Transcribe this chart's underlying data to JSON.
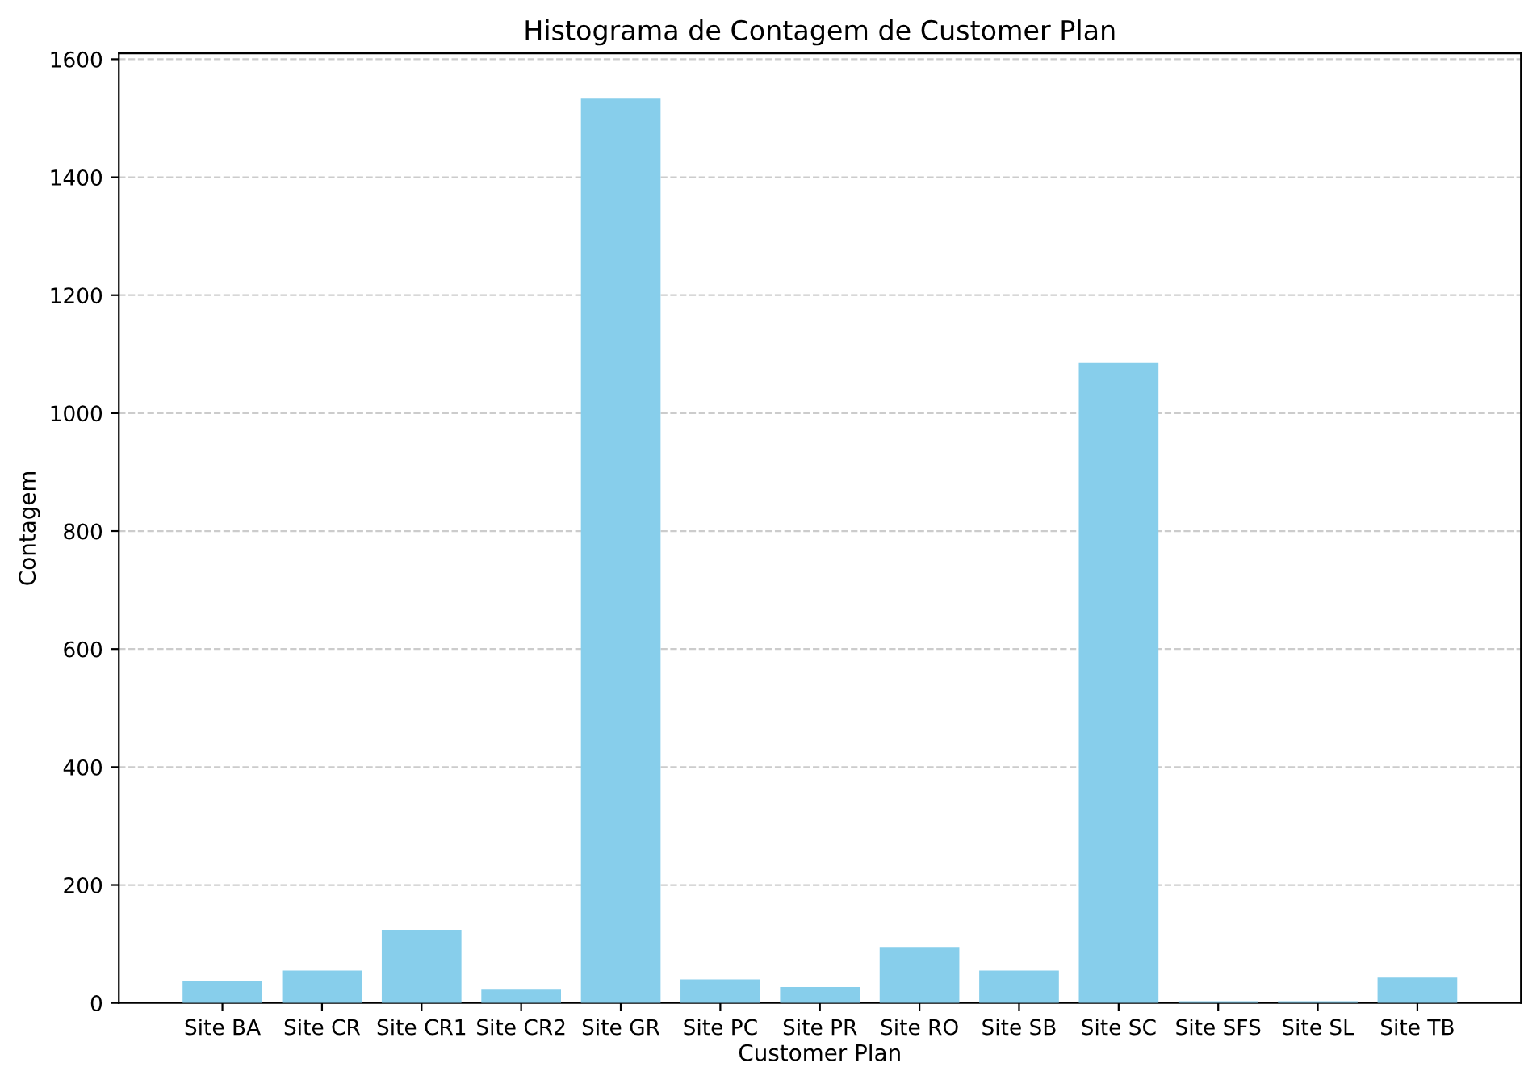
{
  "chart_data": {
    "type": "bar",
    "title": "Histograma de Contagem de Customer Plan",
    "xlabel": "Customer Plan",
    "ylabel": "Contagem",
    "categories": [
      "Site BA",
      "Site CR",
      "Site CR1",
      "Site CR2",
      "Site GR",
      "Site PC",
      "Site PR",
      "Site RO",
      "Site SB",
      "Site SC",
      "Site SFS",
      "Site SL",
      "Site TB"
    ],
    "values": [
      37,
      55,
      124,
      24,
      1533,
      40,
      27,
      95,
      55,
      1085,
      3,
      3,
      43
    ],
    "color": "#87ceeb",
    "ylim": [
      0,
      1610
    ],
    "yticks": [
      0,
      200,
      400,
      600,
      800,
      1000,
      1200,
      1400,
      1600
    ],
    "grid": "y"
  }
}
